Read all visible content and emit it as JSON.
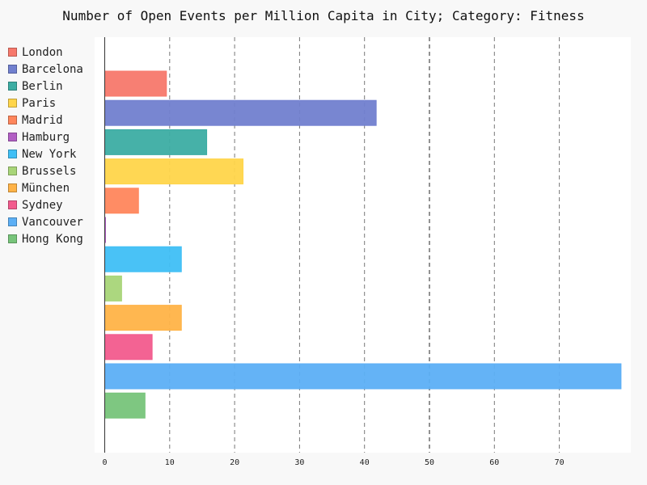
{
  "chart_data": {
    "type": "bar",
    "orientation": "horizontal",
    "title": "Number of Open Events per Million Capita in City; Category: Fitness",
    "xlabel": "",
    "ylabel": "",
    "xlim": [
      0,
      80
    ],
    "x_ticks": [
      0,
      10,
      20,
      30,
      40,
      50,
      60,
      70
    ],
    "grid": "vertical-dashed",
    "legend_position": "left",
    "series": [
      {
        "name": "London",
        "value": 9.5,
        "color": "#f7786b"
      },
      {
        "name": "Barcelona",
        "value": 41.8,
        "color": "#7180cf"
      },
      {
        "name": "Berlin",
        "value": 15.7,
        "color": "#3cada3"
      },
      {
        "name": "Paris",
        "value": 21.3,
        "color": "#ffd54a"
      },
      {
        "name": "Madrid",
        "value": 5.2,
        "color": "#ff865c"
      },
      {
        "name": "Hamburg",
        "value": 0.1,
        "color": "#b25fc4"
      },
      {
        "name": "New York",
        "value": 11.8,
        "color": "#3fbff5"
      },
      {
        "name": "Brussels",
        "value": 2.6,
        "color": "#a8d578"
      },
      {
        "name": "München",
        "value": 11.8,
        "color": "#ffb347"
      },
      {
        "name": "Sydney",
        "value": 7.3,
        "color": "#f25b8d"
      },
      {
        "name": "Vancouver",
        "value": 79.5,
        "color": "#5caff5"
      },
      {
        "name": "Hong Kong",
        "value": 6.2,
        "color": "#77c47a"
      }
    ]
  }
}
